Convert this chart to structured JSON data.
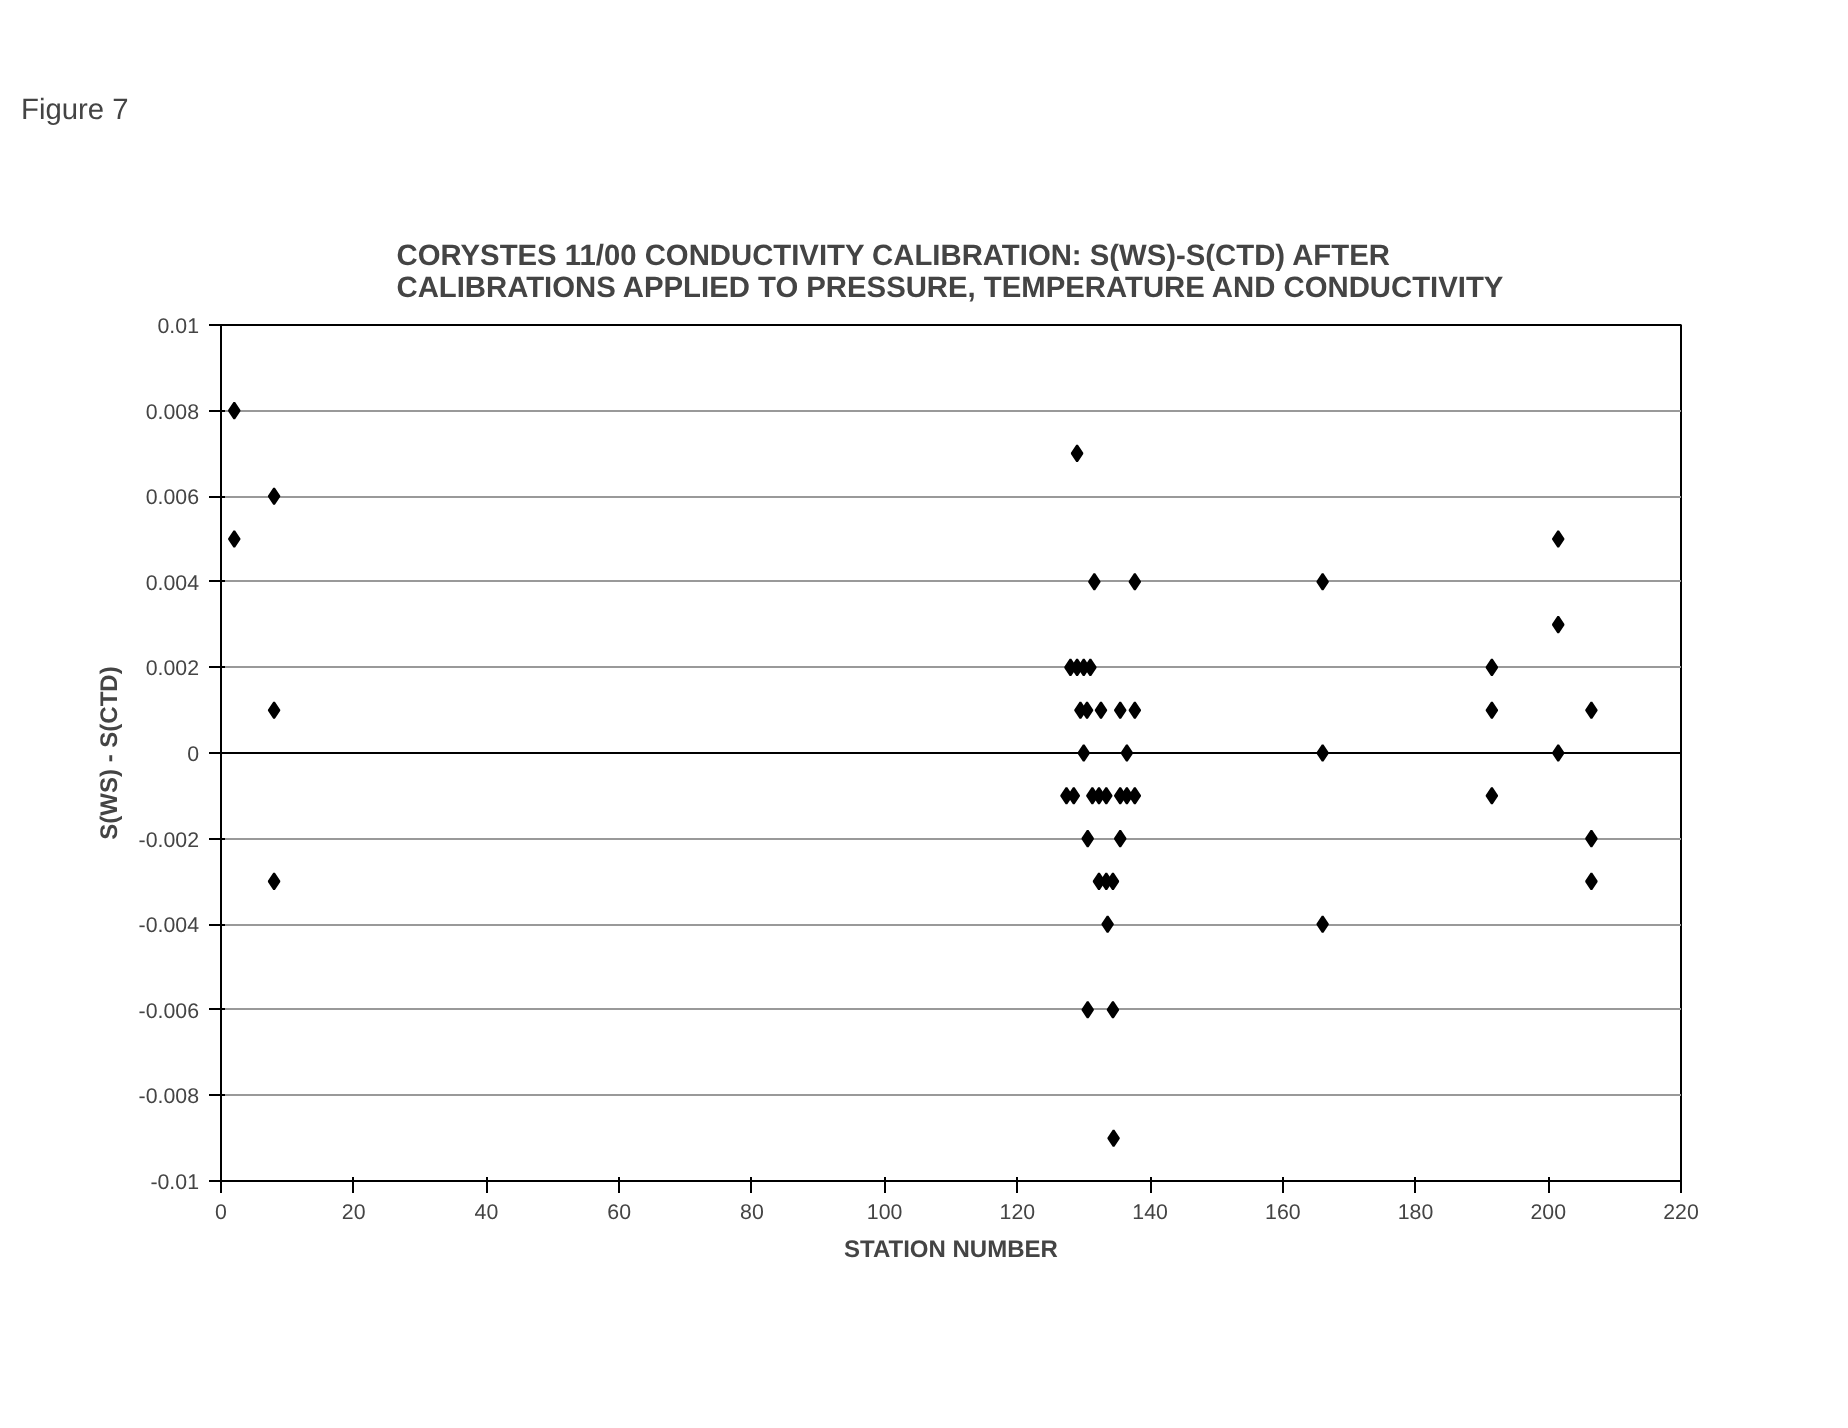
{
  "chart_data": {
    "type": "scatter",
    "title": "CORYSTES 11/00 CONDUCTIVITY CALIBRATION: S(WS)-S(CTD) AFTER\nCALIBRATIONS APPLIED TO PRESSURE, TEMPERATURE AND CONDUCTIVITY",
    "xlabel": "STATION NUMBER",
    "ylabel": "S(WS) - S(CTD)",
    "annotations": [
      "Figure 7"
    ],
    "series": [
      {
        "color": "#000000",
        "x": [
          2,
          8,
          2,
          8,
          8,
          129,
          131.6,
          137.7,
          128,
          129,
          130,
          131,
          129.5,
          130.5,
          132.6,
          135.5,
          137.7,
          130,
          136.5,
          127.4,
          128.5,
          131.3,
          132.3,
          133.4,
          135.5,
          136.5,
          137.7,
          130.6,
          135.5,
          132.3,
          133.4,
          134.4,
          133.6,
          130.6,
          134.4,
          134.5,
          166,
          166,
          166,
          191.5,
          191.5,
          191.5,
          201.5,
          201.5,
          201.5,
          206.5,
          206.5,
          206.5
        ],
        "values": [
          0.008,
          0.006,
          0.005,
          0.001,
          -0.003,
          0.007,
          0.004,
          0.004,
          0.002,
          0.002,
          0.002,
          0.002,
          0.001,
          0.001,
          0.001,
          0.001,
          0.001,
          0,
          0,
          -0.001,
          -0.001,
          -0.001,
          -0.001,
          -0.001,
          -0.001,
          -0.001,
          -0.001,
          -0.002,
          -0.002,
          -0.003,
          -0.003,
          -0.003,
          -0.004,
          -0.006,
          -0.006,
          -0.009,
          0.004,
          0,
          -0.004,
          0.002,
          0.001,
          -0.001,
          0.005,
          0.003,
          0,
          0.001,
          -0.002,
          -0.003
        ]
      }
    ],
    "xlim": [
      0,
      220
    ],
    "xticks": [
      0,
      20,
      40,
      60,
      80,
      100,
      120,
      140,
      160,
      180,
      200,
      220
    ],
    "ylim": [
      -0.01,
      0.01
    ],
    "yticks": [
      -0.01,
      -0.008,
      -0.006,
      -0.004,
      -0.002,
      0,
      0.002,
      0.004,
      0.006,
      0.008,
      0.01
    ],
    "grid": "y",
    "marker": "diamond"
  }
}
